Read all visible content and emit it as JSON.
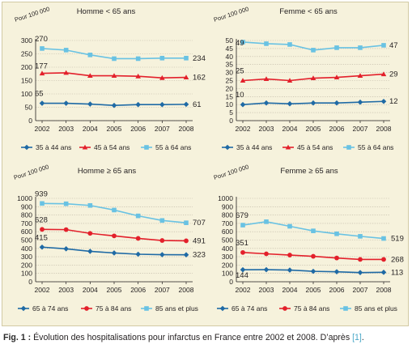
{
  "caption": {
    "label": "Fig. 1 :",
    "text": " Évolution des hospitalisations pour infarctus en France entre 2002 et 2008. D’après ",
    "ref": "[1]",
    "end": "."
  },
  "chart_data": [
    {
      "type": "line",
      "title": "Homme < 65 ans",
      "ylabel": "Pour 100 000",
      "x": [
        2002,
        2003,
        2004,
        2005,
        2006,
        2007,
        2008
      ],
      "ylim": [
        0,
        300
      ],
      "yticks": [
        0,
        50,
        100,
        150,
        200,
        250,
        300
      ],
      "grid": "horizontal",
      "legend_position": "bottom",
      "series": [
        {
          "name": "35 à 44 ans",
          "color": "#1f6aa5",
          "marker": "diamond",
          "values": [
            65,
            65,
            62,
            57,
            60,
            60,
            61
          ],
          "start_label": "65",
          "end_label": "61"
        },
        {
          "name": "45 à 54 ans",
          "color": "#e3202b",
          "marker": "triangle",
          "values": [
            177,
            179,
            168,
            168,
            166,
            160,
            162
          ],
          "start_label": "177",
          "end_label": "162"
        },
        {
          "name": "55 à 64 ans",
          "color": "#69c2e3",
          "marker": "square",
          "values": [
            270,
            264,
            246,
            232,
            232,
            234,
            234
          ],
          "start_label": "270",
          "end_label": "234"
        }
      ]
    },
    {
      "type": "line",
      "title": "Femme < 65 ans",
      "ylabel": "Pour 100 000",
      "x": [
        2002,
        2003,
        2004,
        2005,
        2006,
        2007,
        2008
      ],
      "ylim": [
        0,
        50
      ],
      "yticks": [
        0,
        5,
        10,
        15,
        20,
        25,
        30,
        35,
        40,
        45,
        50
      ],
      "grid": "horizontal",
      "legend_position": "bottom",
      "series": [
        {
          "name": "35 à 44 ans",
          "color": "#1f6aa5",
          "marker": "diamond",
          "values": [
            10,
            11,
            10.5,
            11,
            11,
            11.5,
            12
          ],
          "start_label": "10",
          "end_label": "12"
        },
        {
          "name": "45 à 54 ans",
          "color": "#e3202b",
          "marker": "triangle",
          "values": [
            25,
            26,
            25,
            26.5,
            27,
            28,
            29
          ],
          "start_label": "25",
          "end_label": "29"
        },
        {
          "name": "55 à 64 ans",
          "color": "#69c2e3",
          "marker": "square",
          "values": [
            49,
            48,
            47.5,
            44,
            45.5,
            45.5,
            47
          ],
          "start_label": "49",
          "end_label": "47"
        }
      ]
    },
    {
      "type": "line",
      "title": "Homme ≥ 65 ans",
      "ylabel": "Pour 100 000",
      "x": [
        2002,
        2003,
        2004,
        2005,
        2006,
        2007,
        2008
      ],
      "ylim": [
        0,
        1000
      ],
      "yticks": [
        0,
        100,
        200,
        300,
        400,
        500,
        600,
        700,
        800,
        900,
        1000
      ],
      "grid": "horizontal",
      "legend_position": "bottom",
      "series": [
        {
          "name": "65 à 74 ans",
          "color": "#1f6aa5",
          "marker": "diamond",
          "values": [
            415,
            395,
            365,
            345,
            330,
            325,
            323
          ],
          "start_label": "415",
          "end_label": "323"
        },
        {
          "name": "75 à 84 ans",
          "color": "#e3202b",
          "marker": "circle",
          "values": [
            628,
            625,
            580,
            550,
            520,
            495,
            491
          ],
          "start_label": "628",
          "end_label": "491"
        },
        {
          "name": "85 ans et plus",
          "color": "#69c2e3",
          "marker": "square",
          "values": [
            939,
            935,
            915,
            860,
            790,
            735,
            707
          ],
          "start_label": "939",
          "end_label": "707"
        }
      ]
    },
    {
      "type": "line",
      "title": "Femme ≥ 65 ans",
      "ylabel": "Pour 100 000",
      "x": [
        2002,
        2003,
        2004,
        2005,
        2006,
        2007,
        2008
      ],
      "ylim": [
        0,
        1000
      ],
      "yticks": [
        0,
        100,
        200,
        300,
        400,
        500,
        600,
        700,
        800,
        900,
        1000
      ],
      "grid": "horizontal",
      "legend_position": "bottom",
      "series": [
        {
          "name": "65 à 74 ans",
          "color": "#1f6aa5",
          "marker": "diamond",
          "values": [
            144,
            145,
            140,
            125,
            120,
            110,
            113
          ],
          "start_label": "144",
          "end_label": "113"
        },
        {
          "name": "75 à 84 ans",
          "color": "#e3202b",
          "marker": "circle",
          "values": [
            351,
            335,
            320,
            305,
            285,
            268,
            268
          ],
          "start_label": "351",
          "end_label": "268"
        },
        {
          "name": "85 ans et plus",
          "color": "#69c2e3",
          "marker": "square",
          "values": [
            679,
            720,
            665,
            610,
            575,
            545,
            519
          ],
          "start_label": "679",
          "end_label": "519"
        }
      ]
    }
  ]
}
